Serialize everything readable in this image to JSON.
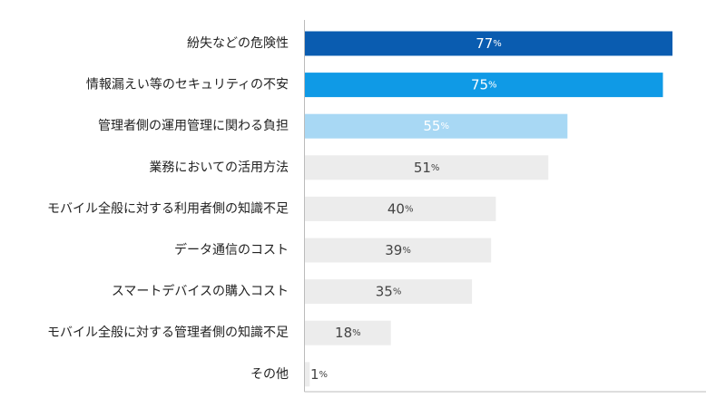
{
  "chart_data": {
    "type": "bar",
    "orientation": "horizontal",
    "title": "",
    "xlabel": "",
    "ylabel": "",
    "unit": "%",
    "xlim": [
      0,
      100
    ],
    "grid": false,
    "legend": "none",
    "categories": [
      "紛失などの危険性",
      "情報漏えい等のセキュリティの不安",
      "管理者側の運用管理に関わる負担",
      "業務においての活用方法",
      "モバイル全般に対する利用者側の知識不足",
      "データ通信のコスト",
      "スマートデバイスの購入コスト",
      "モバイル全般に対する管理者側の知識不足",
      "その他"
    ],
    "values": [
      77,
      75,
      55,
      51,
      40,
      39,
      35,
      18,
      1
    ],
    "bar_colors": [
      "#0a5cb0",
      "#0f9ae6",
      "#a8d8f4",
      "#ececec",
      "#ececec",
      "#ececec",
      "#ececec",
      "#ececec",
      "#ececec"
    ],
    "label_colors": [
      "#ffffff",
      "#ffffff",
      "#ffffff",
      "#444444",
      "#444444",
      "#444444",
      "#444444",
      "#444444",
      "#444444"
    ],
    "axis_color": "#bbbbbb"
  }
}
